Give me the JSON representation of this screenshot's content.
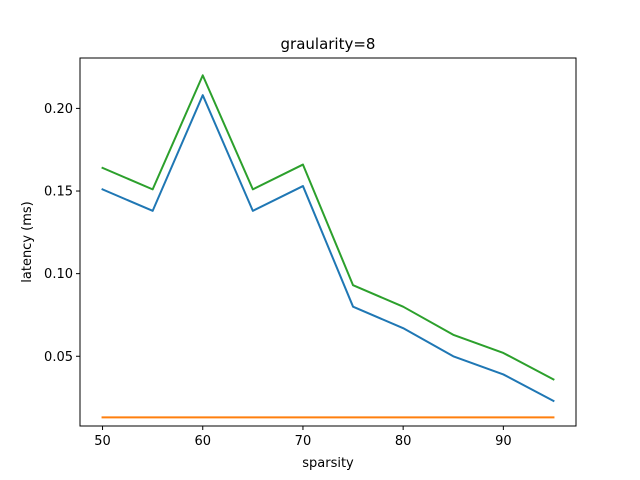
{
  "chart_data": {
    "type": "line",
    "title": "graularity=8",
    "xlabel": "sparsity",
    "ylabel": "latency (ms)",
    "x": [
      50,
      55,
      60,
      65,
      70,
      75,
      80,
      85,
      90,
      95
    ],
    "xlim": [
      47.75,
      97.25
    ],
    "ylim": [
      0.0078,
      0.2305
    ],
    "xticks": [
      50,
      60,
      70,
      80,
      90
    ],
    "yticks": [
      0.05,
      0.1,
      0.15,
      0.2
    ],
    "ytick_labels": [
      "0.05",
      "0.10",
      "0.15",
      "0.20"
    ],
    "grid": false,
    "series": [
      {
        "color": "#1f77b4",
        "values": [
          0.151,
          0.138,
          0.208,
          0.138,
          0.153,
          0.08,
          0.067,
          0.05,
          0.039,
          0.023
        ]
      },
      {
        "color": "#ff7f0e",
        "values": [
          0.013,
          0.013,
          0.013,
          0.013,
          0.013,
          0.013,
          0.013,
          0.013,
          0.013,
          0.013
        ]
      },
      {
        "color": "#2ca02c",
        "values": [
          0.164,
          0.151,
          0.22,
          0.151,
          0.166,
          0.093,
          0.08,
          0.063,
          0.052,
          0.036
        ]
      }
    ]
  }
}
